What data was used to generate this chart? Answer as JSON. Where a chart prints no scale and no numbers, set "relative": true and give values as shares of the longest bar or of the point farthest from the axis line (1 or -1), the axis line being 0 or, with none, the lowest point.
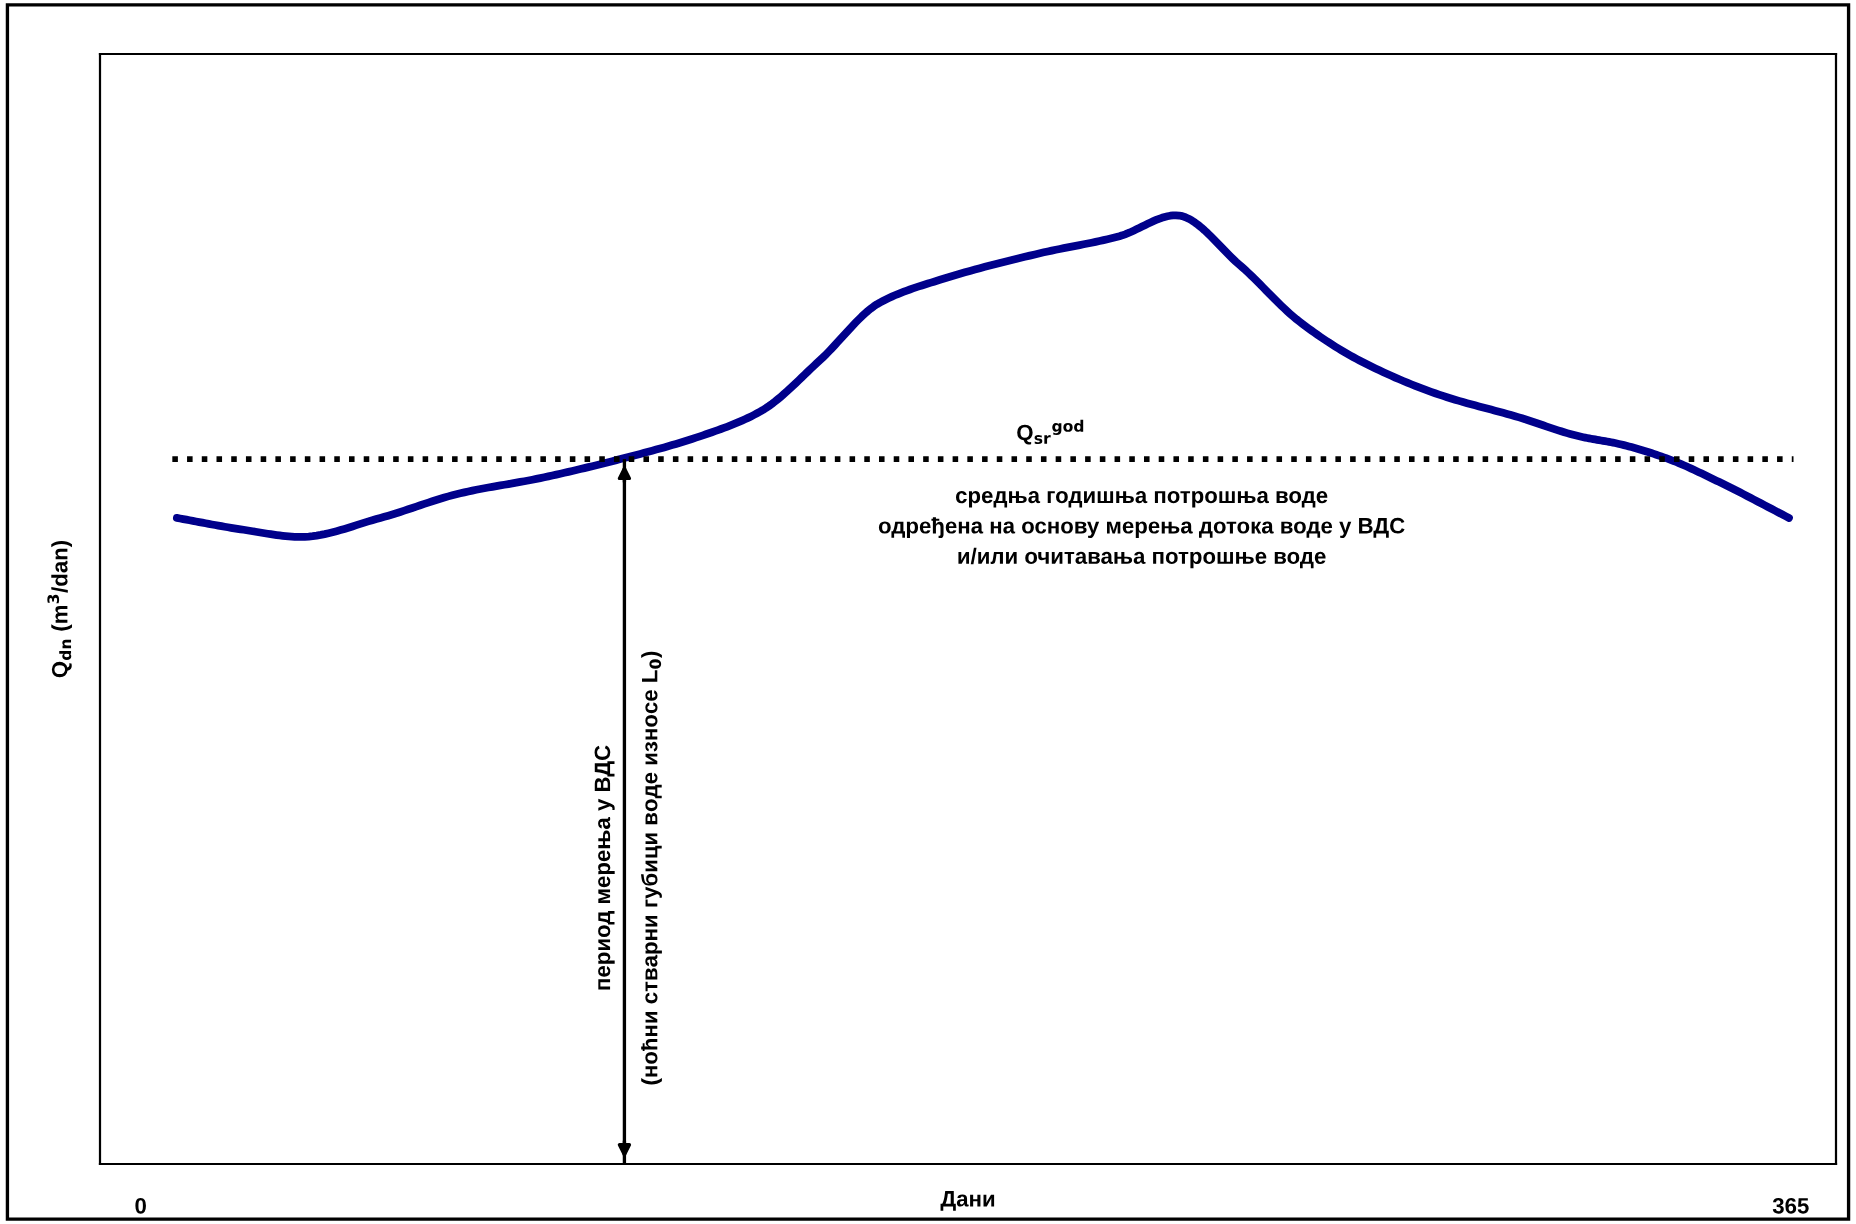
{
  "chart_data": {
    "type": "line",
    "relative": true,
    "xlabel": "Дани",
    "ylabel": "Q$_{dn}$ (m$^{3}$/dan)",
    "xlim": [
      -9,
      375
    ],
    "xticks": [
      0,
      365
    ],
    "grid": false,
    "legend": false,
    "marker": "none",
    "line_style": "solid",
    "tick_labels": "x",
    "series": [
      {
        "color": "#00008b",
        "x": [
          8,
          22.1,
          35.4,
          53,
          70.7,
          88.4,
          106.1,
          123.7,
          137,
          150.2,
          163.5,
          176.8,
          198.9,
          216.5,
          229,
          243,
          256.3,
          269.6,
          287.2,
          304.9,
          318.2,
          327,
          338,
          349.1,
          364.6
        ],
        "values": [
          0.681,
          0.669,
          0.661,
          0.681,
          0.707,
          0.723,
          0.743,
          0.767,
          0.793,
          0.847,
          0.908,
          0.932,
          0.96,
          0.978,
          1.0,
          0.948,
          0.888,
          0.847,
          0.811,
          0.787,
          0.767,
          0.759,
          0.743,
          0.719,
          0.681
        ]
      }
    ],
    "ref_lines": [
      {
        "axis": "y",
        "value": 0.743,
        "label": "Q$_{sr}$$^{god}$",
        "color": "#000000",
        "line_style": "dotted"
      },
      {
        "axis": "x",
        "value": 107,
        "label": "период мерења у ВДС\n(ноћни стварни губици воде износе L$_{0}$)",
        "color": "#000000"
      }
    ],
    "annotations": [
      "средња годишња потрошња воде\nодређена на основу мерења дотока воде у ВДС\nи/или очитавања потрошње воде"
    ]
  }
}
